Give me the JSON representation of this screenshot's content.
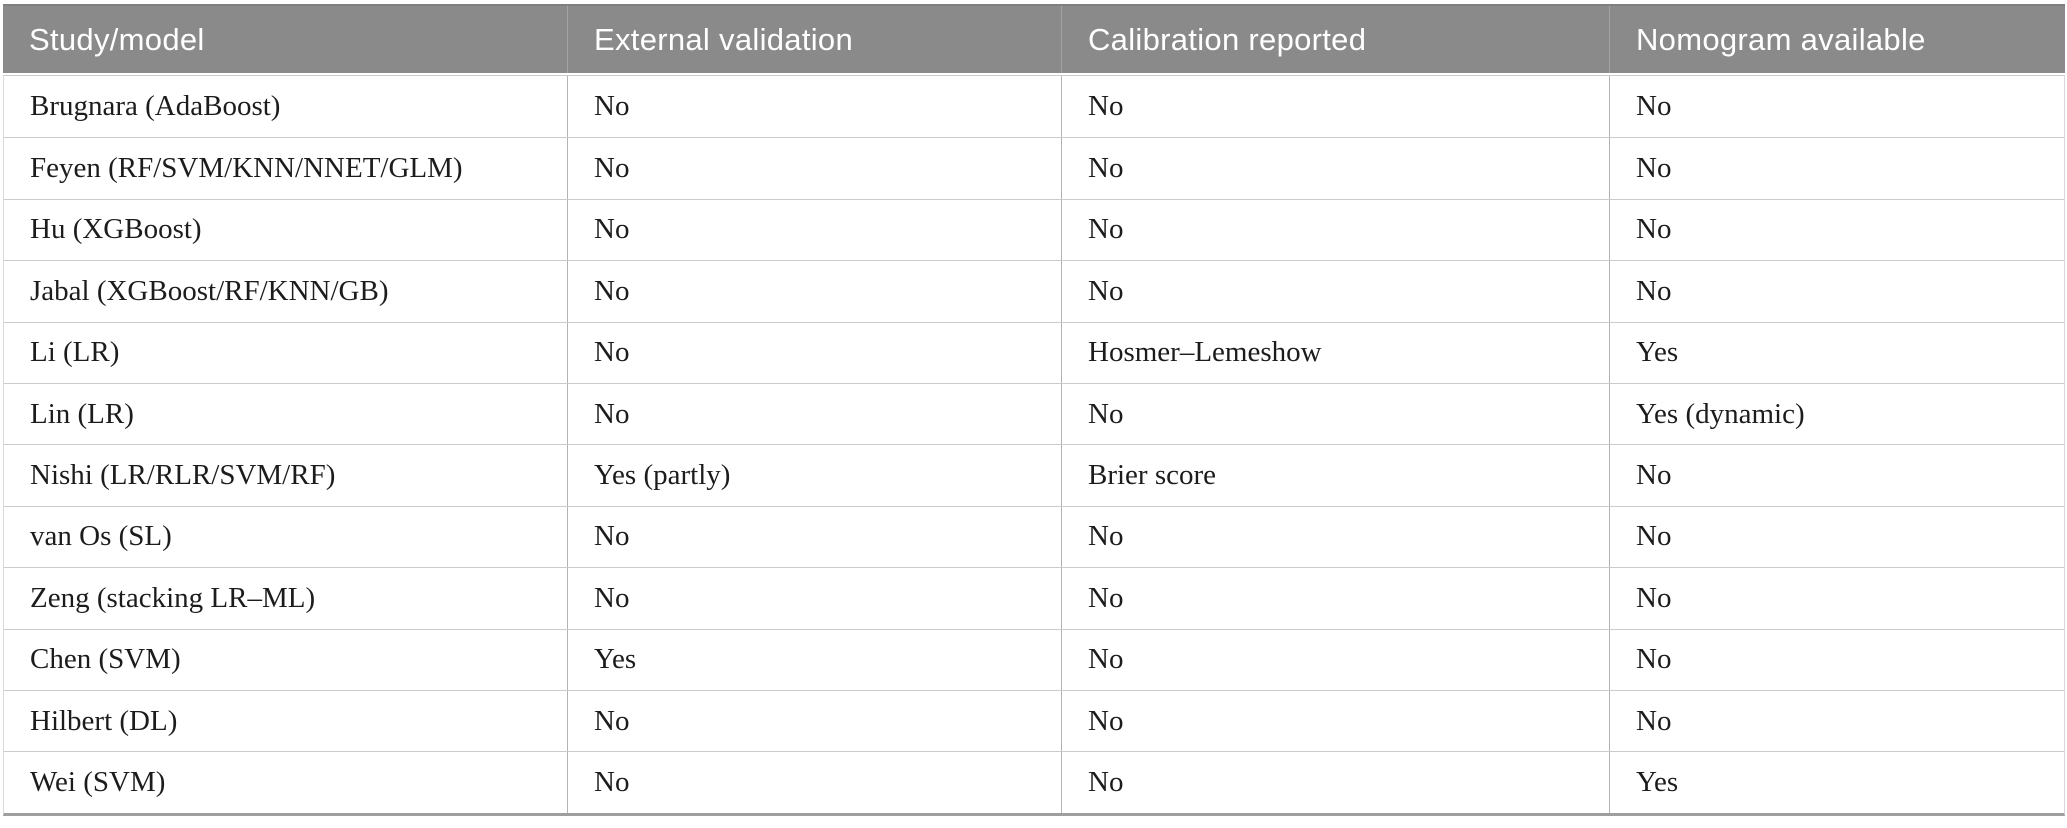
{
  "table": {
    "columns": [
      {
        "label": "Study/model"
      },
      {
        "label": "External validation"
      },
      {
        "label": "Calibration reported"
      },
      {
        "label": "Nomogram available"
      }
    ],
    "rows": [
      [
        "Brugnara (AdaBoost)",
        "No",
        "No",
        "No"
      ],
      [
        "Feyen (RF/SVM/KNN/NNET/GLM)",
        "No",
        "No",
        "No"
      ],
      [
        "Hu (XGBoost)",
        "No",
        "No",
        "No"
      ],
      [
        "Jabal (XGBoost/RF/KNN/GB)",
        "No",
        "No",
        "No"
      ],
      [
        "Li (LR)",
        "No",
        "Hosmer–Lemeshow",
        "Yes"
      ],
      [
        "Lin (LR)",
        "No",
        "No",
        "Yes (dynamic)"
      ],
      [
        "Nishi (LR/RLR/SVM/RF)",
        "Yes (partly)",
        "Brier score",
        "No"
      ],
      [
        "van Os (SL)",
        "No",
        "No",
        "No"
      ],
      [
        "Zeng (stacking LR–ML)",
        "No",
        "No",
        "No"
      ],
      [
        "Chen (SVM)",
        "Yes",
        "No",
        "No"
      ],
      [
        "Hilbert (DL)",
        "No",
        "No",
        "No"
      ],
      [
        "Wei (SVM)",
        "No",
        "No",
        "Yes"
      ]
    ],
    "colors": {
      "header_bg": "#8a8a8a",
      "header_top": "#7f7f7f",
      "header_text": "#ffffff",
      "header_divider": "#a3a3a3",
      "body_text": "#1c1c1c",
      "row_border": "#cbcbcb",
      "col_border": "#b3b3b3",
      "bottom_border": "#9e9e9e"
    }
  }
}
